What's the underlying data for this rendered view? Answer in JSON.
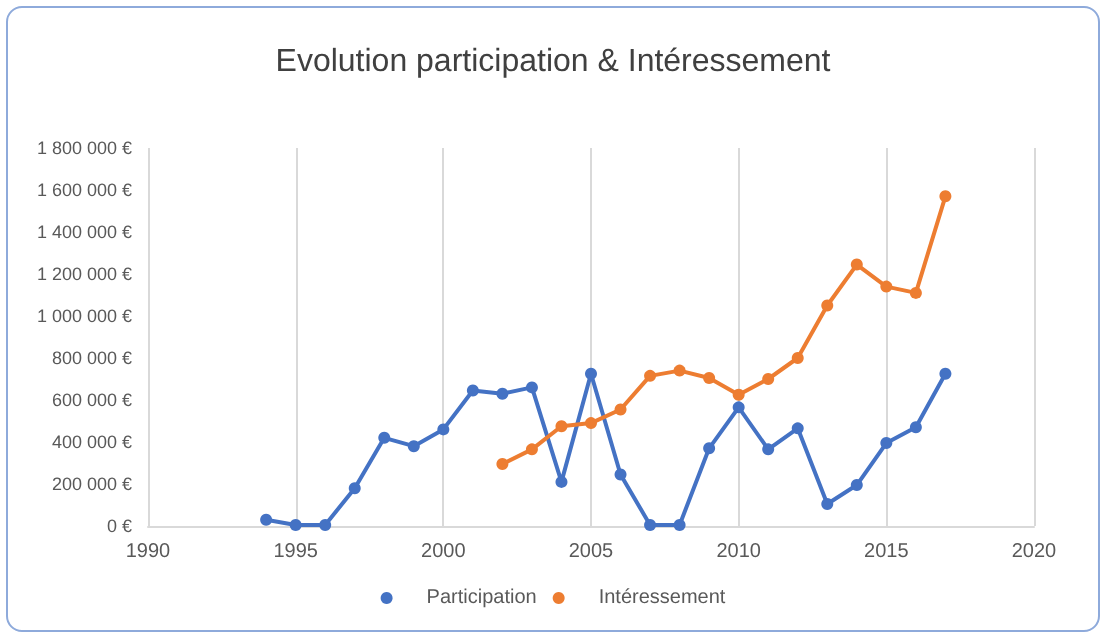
{
  "chart_data": {
    "type": "line",
    "title": "Evolution participation & Intéressement",
    "series": [
      {
        "name": "Participation",
        "color": "#4472c4",
        "x": [
          1994,
          1995,
          1996,
          1997,
          1998,
          1999,
          2000,
          2001,
          2002,
          2003,
          2004,
          2005,
          2006,
          2007,
          2008,
          2009,
          2010,
          2011,
          2012,
          2013,
          2014,
          2015,
          2016,
          2017
        ],
        "values": [
          30000,
          5000,
          5000,
          180000,
          420000,
          380000,
          460000,
          645000,
          630000,
          660000,
          210000,
          725000,
          245000,
          5000,
          5000,
          370000,
          565000,
          365000,
          465000,
          105000,
          195000,
          395000,
          470000,
          725000
        ]
      },
      {
        "name": "Intéressement",
        "color": "#ed7d31",
        "x": [
          2002,
          2003,
          2004,
          2005,
          2006,
          2007,
          2008,
          2009,
          2010,
          2011,
          2012,
          2013,
          2014,
          2015,
          2016,
          2017
        ],
        "values": [
          295000,
          365000,
          475000,
          490000,
          555000,
          715000,
          740000,
          705000,
          625000,
          700000,
          800000,
          1050000,
          1245000,
          1140000,
          1110000,
          1570000
        ]
      }
    ],
    "xlim": [
      1990,
      2020
    ],
    "xticks": [
      1990,
      1995,
      2000,
      2005,
      2010,
      2015,
      2020
    ],
    "ylim": [
      0,
      1800000
    ],
    "yticks": [
      {
        "value": 0,
        "label": "0 €"
      },
      {
        "value": 200000,
        "label": "200 000 €"
      },
      {
        "value": 400000,
        "label": "400 000 €"
      },
      {
        "value": 600000,
        "label": "600 000 €"
      },
      {
        "value": 800000,
        "label": "800 000 €"
      },
      {
        "value": 1000000,
        "label": "1 000 000 €"
      },
      {
        "value": 1200000,
        "label": "1 200 000 €"
      },
      {
        "value": 1400000,
        "label": "1 400 000 €"
      },
      {
        "value": 1600000,
        "label": "1 600 000 €"
      },
      {
        "value": 1800000,
        "label": "1 800 000 €"
      }
    ],
    "grid": "x",
    "legend": "bottom",
    "marker": "circle",
    "line_style": "solid"
  }
}
